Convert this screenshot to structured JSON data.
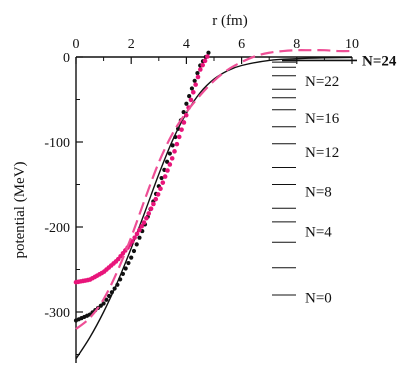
{
  "chart_data": {
    "type": "line",
    "title": "",
    "xlabel": "r (fm)",
    "ylabel": "potential  (MeV)",
    "xlim": [
      0,
      10
    ],
    "ylim": [
      -360,
      0
    ],
    "x_ticks": [
      "0",
      "2",
      "4",
      "6",
      "8",
      "10"
    ],
    "y_ticks": [
      "0",
      "-100",
      "-200",
      "-300"
    ],
    "x_tick_values": [
      0,
      2,
      4,
      6,
      8,
      10
    ],
    "y_tick_values": [
      0,
      -100,
      -200,
      -300
    ],
    "grid": false,
    "colors": {
      "black": "#111111",
      "magenta": "#e8157a",
      "magenta_dash": "#ee4f96"
    },
    "series": [
      {
        "style": "solid",
        "color": "black",
        "x": [
          0,
          0.5,
          1,
          1.5,
          2,
          2.5,
          3,
          3.5,
          4,
          4.5,
          5,
          5.5,
          6,
          7,
          8,
          9,
          10
        ],
        "y": [
          -355,
          -330,
          -300,
          -265,
          -225,
          -182,
          -138,
          -98,
          -66,
          -42,
          -26,
          -16,
          -10,
          -4,
          -2,
          -1,
          -0.5
        ]
      },
      {
        "style": "dotted",
        "color": "black",
        "x": [
          0,
          0.5,
          1,
          1.5,
          2,
          2.5,
          3,
          3.5,
          4,
          4.5,
          4.8
        ],
        "y": [
          -310,
          -303,
          -290,
          -268,
          -236,
          -197,
          -152,
          -104,
          -55,
          -10,
          5
        ]
      },
      {
        "style": "dotted",
        "color": "magenta",
        "x": [
          0,
          0.5,
          1,
          1.5,
          2,
          2.5,
          3,
          3.5,
          4,
          4.5,
          4.8
        ],
        "y": [
          -265,
          -262,
          -253,
          -239,
          -219,
          -193,
          -160,
          -118,
          -68,
          -15,
          3
        ]
      },
      {
        "style": "dashed",
        "color": "magenta_dash",
        "x": [
          0,
          0.5,
          1,
          1.5,
          2,
          2.5,
          3,
          3.5,
          4,
          4.5,
          5,
          5.5,
          6,
          6.5,
          7,
          7.5,
          8,
          8.5,
          9,
          9.5,
          10
        ],
        "y": [
          -320,
          -307,
          -285,
          -252,
          -212,
          -167,
          -124,
          -90,
          -65,
          -45,
          -28,
          -15,
          -6,
          1,
          5,
          7,
          8,
          8,
          8,
          7,
          7
        ]
      }
    ],
    "levels": [
      {
        "label": "N=24",
        "y": -4,
        "bold": true
      },
      {
        "label": "N=22",
        "y": -28
      },
      {
        "label": "N=16",
        "y": -72
      },
      {
        "label": "N=12",
        "y": -112
      },
      {
        "label": "N=8",
        "y": -158
      },
      {
        "label": "N=4",
        "y": -205
      },
      {
        "label": "N=0",
        "y": -283
      }
    ],
    "level_lines": [
      -6,
      -12,
      -22,
      -38,
      -48,
      -62,
      -82,
      -102,
      -130,
      -150,
      -178,
      -194,
      -218,
      -248,
      -280
    ]
  }
}
